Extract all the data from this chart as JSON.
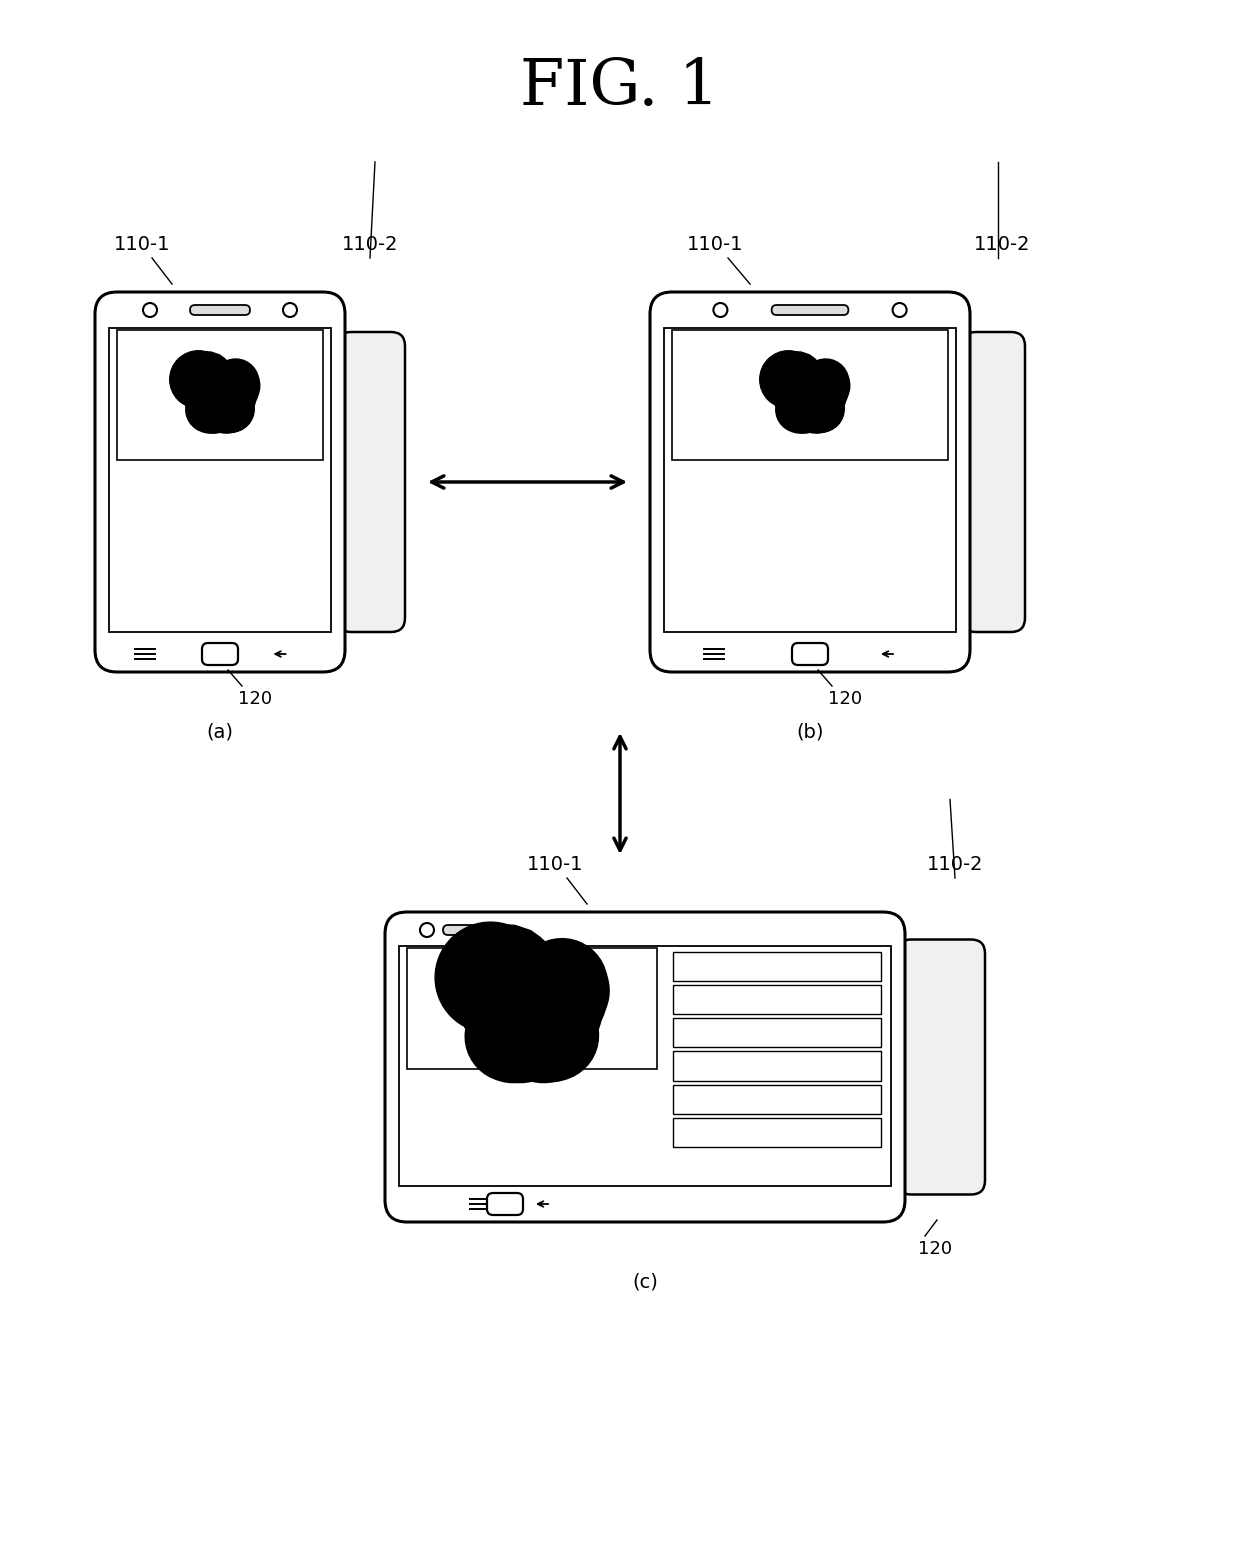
{
  "title": "FIG. 1",
  "bg_color": "#ffffff",
  "line_color": "#000000",
  "label_110_1": "110-1",
  "label_110_2": "110-2",
  "label_120": "120",
  "label_a": "(a)",
  "label_b": "(b)",
  "label_c": "(c)",
  "figsize": [
    12.4,
    15.47
  ],
  "dpi": 100
}
